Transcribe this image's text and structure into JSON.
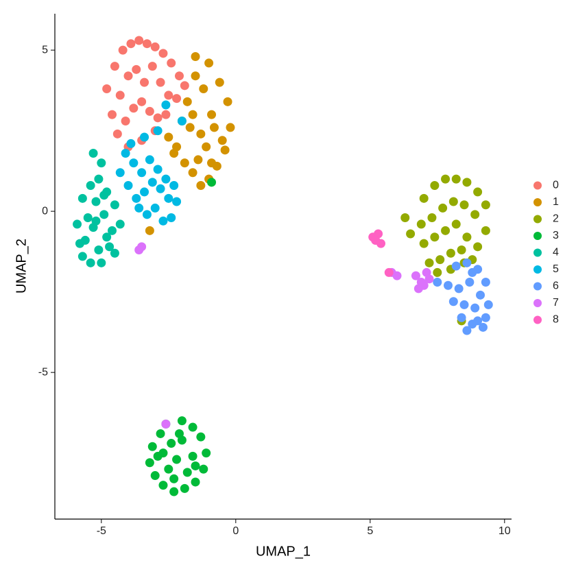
{
  "chart_data": {
    "type": "scatter",
    "x_label": "UMAP_1",
    "y_label": "UMAP_2",
    "xlim": [
      -6.73,
      10.26
    ],
    "ylim": [
      -9.55,
      6.13
    ],
    "xticks": [
      -5,
      0,
      5,
      10
    ],
    "yticks": [
      -5,
      0,
      5
    ],
    "grid": false,
    "legend": "right",
    "series": [
      {
        "name": "0",
        "color": "#F8766D",
        "x": [
          -4.8,
          -4.5,
          -4.2,
          -3.9,
          -3.6,
          -3.3,
          -3.0,
          -2.7,
          -2.4,
          -2.1,
          -4.6,
          -4.3,
          -4.0,
          -3.7,
          -3.4,
          -3.1,
          -2.8,
          -2.5,
          -2.2,
          -1.9,
          -4.4,
          -4.1,
          -3.8,
          -3.5,
          -3.2,
          -2.9,
          -2.6,
          -4.0,
          -3.5,
          -3.0
        ],
        "values": [
          3.8,
          4.5,
          5.0,
          5.2,
          5.3,
          5.2,
          5.1,
          4.9,
          4.6,
          4.2,
          3.0,
          3.6,
          4.2,
          4.4,
          4.0,
          4.5,
          4.0,
          3.6,
          3.5,
          3.9,
          2.4,
          2.8,
          3.2,
          3.4,
          3.1,
          2.9,
          3.0,
          2.0,
          2.2,
          2.5
        ]
      },
      {
        "name": "1",
        "color": "#D39200",
        "x": [
          -1.0,
          -0.6,
          -0.3,
          -0.2,
          -0.4,
          -0.7,
          -1.0,
          -1.3,
          -1.6,
          -1.9,
          -2.2,
          -2.5,
          -1.5,
          -1.2,
          -0.9,
          -0.5,
          -0.8,
          -1.1,
          -1.4,
          -1.7,
          -2.0,
          -2.3,
          -1.8,
          -1.3,
          -0.9,
          -1.6,
          -3.2,
          -1.5
        ],
        "values": [
          4.6,
          4.0,
          3.4,
          2.6,
          1.9,
          1.4,
          1.0,
          0.8,
          1.2,
          1.5,
          2.0,
          2.3,
          4.2,
          3.8,
          3.0,
          2.2,
          2.6,
          2.0,
          1.6,
          2.6,
          2.8,
          1.8,
          3.4,
          2.4,
          1.5,
          3.0,
          -0.6,
          4.8
        ]
      },
      {
        "name": "2",
        "color": "#93AA00",
        "x": [
          7.0,
          7.4,
          7.8,
          8.2,
          8.6,
          9.0,
          9.3,
          6.9,
          7.3,
          7.7,
          8.1,
          8.5,
          8.9,
          9.3,
          7.0,
          7.4,
          7.8,
          8.2,
          8.6,
          9.0,
          7.2,
          7.6,
          8.0,
          8.4,
          8.8,
          7.5,
          8.0,
          8.5,
          6.5,
          6.3,
          8.4
        ],
        "values": [
          0.4,
          0.8,
          1.0,
          1.0,
          0.9,
          0.6,
          0.2,
          -0.4,
          -0.2,
          0.1,
          0.3,
          0.2,
          -0.1,
          -0.6,
          -1.0,
          -0.8,
          -0.6,
          -0.4,
          -0.8,
          -1.1,
          -1.6,
          -1.5,
          -1.3,
          -1.2,
          -1.5,
          -1.9,
          -1.8,
          -1.6,
          -0.7,
          -0.2,
          -3.4
        ]
      },
      {
        "name": "3",
        "color": "#00BA38",
        "x": [
          -2.6,
          -2.0,
          -1.6,
          -1.3,
          -1.1,
          -1.2,
          -1.5,
          -1.9,
          -2.3,
          -2.7,
          -3.0,
          -3.2,
          -3.1,
          -2.8,
          -2.4,
          -2.0,
          -1.6,
          -2.2,
          -1.8,
          -2.5,
          -2.9,
          -2.3,
          -1.5,
          -2.7,
          -2.1,
          -0.9
        ],
        "values": [
          -6.6,
          -6.5,
          -6.7,
          -7.0,
          -7.5,
          -8.0,
          -8.4,
          -8.6,
          -8.7,
          -8.5,
          -8.2,
          -7.8,
          -7.3,
          -6.9,
          -7.2,
          -7.1,
          -7.6,
          -7.7,
          -8.1,
          -8.0,
          -7.6,
          -8.3,
          -7.9,
          -7.5,
          -6.9,
          0.9
        ]
      },
      {
        "name": "4",
        "color": "#00C19F",
        "x": [
          -5.9,
          -5.7,
          -5.4,
          -5.1,
          -4.8,
          -4.5,
          -4.3,
          -5.8,
          -5.5,
          -5.2,
          -4.9,
          -4.6,
          -5.7,
          -5.4,
          -5.1,
          -4.8,
          -4.5,
          -5.6,
          -5.3,
          -5.0,
          -4.7,
          -5.2,
          -4.9,
          -5.0,
          -5.3
        ],
        "values": [
          -0.4,
          0.4,
          0.8,
          1.0,
          0.6,
          0.2,
          -0.4,
          -1.0,
          -0.2,
          0.3,
          -0.1,
          -0.6,
          -1.4,
          -1.6,
          -1.2,
          -0.8,
          -1.3,
          -0.9,
          -0.5,
          -1.6,
          -1.1,
          -0.3,
          0.5,
          1.5,
          1.8
        ]
      },
      {
        "name": "5",
        "color": "#00B9E3",
        "x": [
          -4.3,
          -4.0,
          -3.7,
          -3.4,
          -3.1,
          -2.8,
          -2.5,
          -2.2,
          -4.1,
          -3.8,
          -3.5,
          -3.2,
          -2.9,
          -2.6,
          -2.3,
          -3.6,
          -3.3,
          -3.0,
          -2.7,
          -2.4,
          -3.9,
          -3.4,
          -2.9,
          -2.6,
          -2.0
        ],
        "values": [
          1.2,
          0.8,
          0.4,
          0.6,
          0.9,
          0.7,
          0.4,
          0.3,
          1.8,
          1.5,
          1.2,
          1.6,
          1.3,
          1.0,
          0.8,
          0.1,
          -0.1,
          0.1,
          -0.3,
          -0.2,
          2.1,
          2.3,
          2.5,
          3.3,
          2.8
        ]
      },
      {
        "name": "6",
        "color": "#619CFF",
        "x": [
          8.2,
          8.6,
          9.0,
          9.3,
          7.9,
          8.3,
          8.7,
          9.1,
          9.4,
          8.1,
          8.5,
          8.9,
          9.3,
          8.4,
          8.8,
          9.2,
          8.6,
          9.0,
          8.8,
          7.5
        ],
        "values": [
          -1.7,
          -1.6,
          -1.8,
          -2.2,
          -2.3,
          -2.4,
          -2.2,
          -2.6,
          -2.9,
          -2.8,
          -2.9,
          -3.0,
          -3.3,
          -3.3,
          -3.5,
          -3.6,
          -3.7,
          -3.4,
          -1.9,
          -2.2
        ]
      },
      {
        "name": "7",
        "color": "#DB72FB",
        "x": [
          6.7,
          6.9,
          7.1,
          7.0,
          6.8,
          7.2,
          5.8,
          6.0,
          -3.6,
          -3.5,
          -2.6
        ],
        "values": [
          -2.0,
          -2.2,
          -1.9,
          -2.3,
          -2.4,
          -2.1,
          -1.9,
          -2.0,
          -1.2,
          -1.1,
          -6.6
        ]
      },
      {
        "name": "8",
        "color": "#FF61C3",
        "x": [
          5.1,
          5.2,
          5.3,
          5.4,
          5.2,
          5.7
        ],
        "values": [
          -0.8,
          -0.9,
          -0.7,
          -1.0,
          -0.9,
          -1.9
        ]
      }
    ]
  }
}
